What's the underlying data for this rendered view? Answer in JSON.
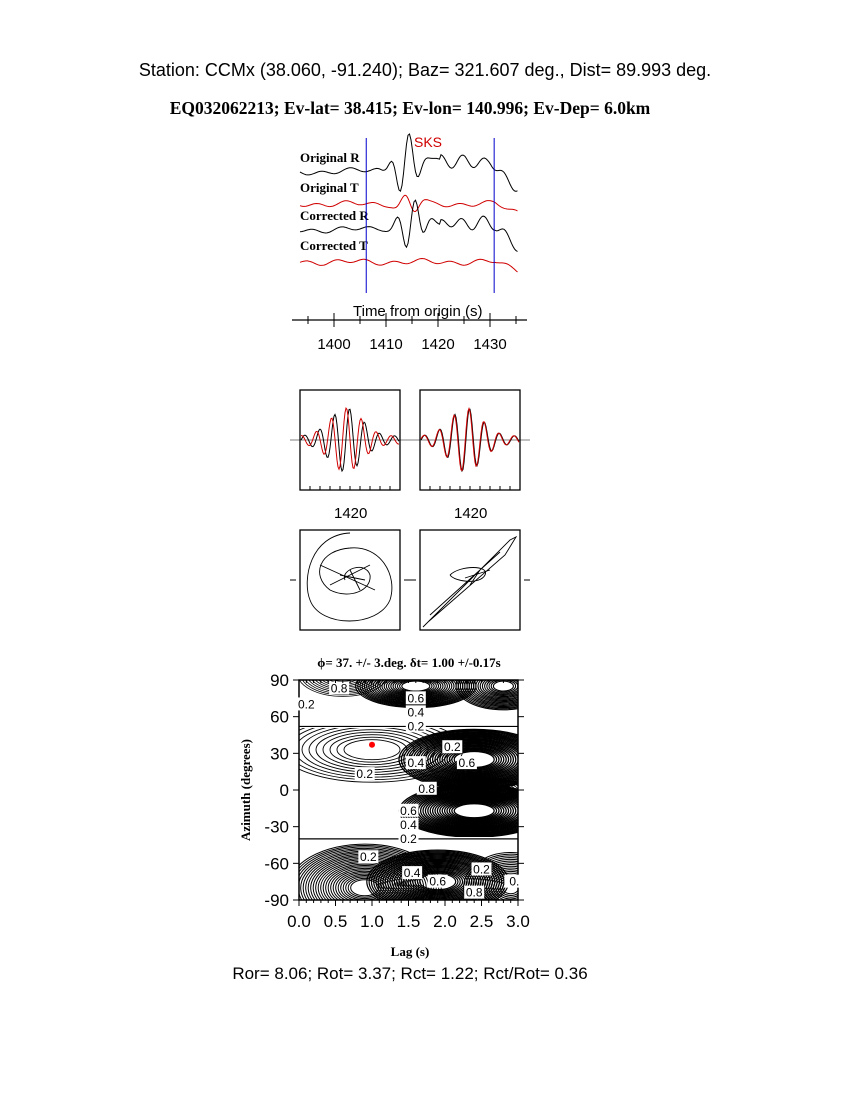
{
  "header": {
    "station_line": "Station: CCMx (38.060,  -91.240); Baz=  321.607 deg., Dist=   89.993 deg.",
    "event_line": "EQ032062213; Ev-lat=  38.415; Ev-lon= 140.996; Ev-Dep=  6.0km"
  },
  "footer": "Ror= 8.06; Rot= 3.37; Rct= 1.22; Rct/Rot= 0.36",
  "colors": {
    "trace_r": "#000000",
    "trace_t": "#d00000",
    "window": "#0000cc",
    "best_fit": "#ff0000",
    "phase": "#d00000"
  },
  "chart_data": [
    {
      "type": "line",
      "phase_label": "SKS",
      "traces": [
        "Original R",
        "Original T",
        "Corrected R",
        "Corrected T"
      ],
      "xlabel": "Time from origin (s)",
      "xticks": [
        "1400",
        "1410",
        "1420",
        "1430"
      ],
      "xlim": [
        1393,
        1436
      ],
      "window": [
        1406.2,
        1430.8
      ]
    },
    {
      "type": "line",
      "panels": [
        "waveforms-before",
        "waveforms-after"
      ],
      "xticks": [
        "1420"
      ]
    },
    {
      "type": "line",
      "panels": [
        "particle-motion-before",
        "particle-motion-after"
      ]
    },
    {
      "type": "heatmap",
      "title": "ϕ= 37. +/- 3.deg. δt= 1.00 +/-0.17s",
      "xlabel": "Lag (s)",
      "ylabel": "Azimuth (degrees)",
      "xlim": [
        0,
        3
      ],
      "ylim": [
        -90,
        90
      ],
      "xticks": [
        "0.0",
        "0.5",
        "1.0",
        "1.5",
        "2.0",
        "2.5",
        "3.0"
      ],
      "yticks": [
        "90",
        "60",
        "30",
        "0",
        "-30",
        "-60",
        "-90"
      ],
      "best_fit": {
        "lag": 1.0,
        "azimuth": 37
      },
      "contour_labels": [
        {
          "text": "0.8",
          "lag": 0.55,
          "az": 83
        },
        {
          "text": "0.2",
          "lag": 0.1,
          "az": 70
        },
        {
          "text": "0.6",
          "lag": 1.6,
          "az": 75
        },
        {
          "text": "0.4",
          "lag": 1.6,
          "az": 68
        },
        {
          "text": "0.2",
          "lag": 1.6,
          "az": 61
        },
        {
          "text": "0.2",
          "lag": 2.1,
          "az": 35
        },
        {
          "text": "0.4",
          "lag": 1.6,
          "az": 22
        },
        {
          "text": "0.6",
          "lag": 2.3,
          "az": 22
        },
        {
          "text": "0.2",
          "lag": 0.9,
          "az": 13
        },
        {
          "text": "0.8",
          "lag": 1.75,
          "az": 1
        },
        {
          "text": "0.6",
          "lag": 1.5,
          "az": -17
        },
        {
          "text": "0.4",
          "lag": 1.5,
          "az": -25
        },
        {
          "text": "0.2",
          "lag": 1.5,
          "az": -32
        },
        {
          "text": "0.2",
          "lag": 0.95,
          "az": -55
        },
        {
          "text": "0.4",
          "lag": 1.55,
          "az": -68
        },
        {
          "text": "0.6",
          "lag": 1.9,
          "az": -75
        },
        {
          "text": "0.2",
          "lag": 2.5,
          "az": -65
        },
        {
          "text": "0.8",
          "lag": 2.4,
          "az": -84
        },
        {
          "text": "0.",
          "lag": 2.95,
          "az": -75
        }
      ]
    }
  ]
}
